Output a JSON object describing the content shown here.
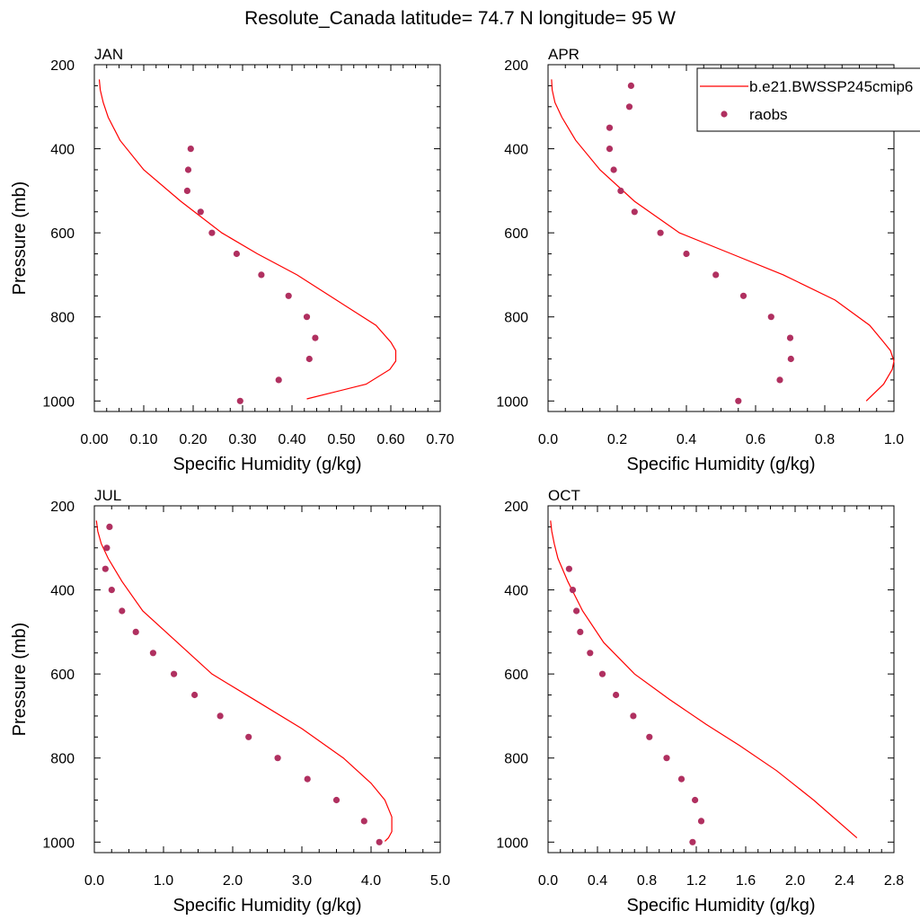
{
  "title": "Resolute_Canada  latitude= 74.7 N longitude= 95 W",
  "colors": {
    "model": "#ff0000",
    "obs": "#b03060",
    "axis": "#000000"
  },
  "legend": {
    "entries": [
      {
        "label": "b.e21.BWSSP245cmip6",
        "kind": "line"
      },
      {
        "label": "raobs",
        "kind": "marker"
      }
    ]
  },
  "chart_data": [
    {
      "type": "line",
      "panel_label": "JAN",
      "xlabel": "Specific Humidity (g/kg)",
      "ylabel": "Pressure (mb)",
      "xlim": [
        0,
        0.7
      ],
      "ylim": [
        200,
        1025
      ],
      "y_reversed": true,
      "xticks": [
        0,
        0.1,
        0.2,
        0.3,
        0.4,
        0.5,
        0.6,
        0.7
      ],
      "xtick_labels": [
        "0.00",
        "0.10",
        "0.20",
        "0.30",
        "0.40",
        "0.50",
        "0.60",
        "0.70"
      ],
      "yticks": [
        200,
        400,
        600,
        800,
        1000
      ],
      "ytick_labels": [
        "200",
        "400",
        "600",
        "800",
        "1000"
      ],
      "series": [
        {
          "name": "b.e21.BWSSP245cmip6",
          "kind": "line",
          "x": [
            0.01,
            0.012,
            0.018,
            0.028,
            0.052,
            0.1,
            0.175,
            0.258,
            0.33,
            0.41,
            0.49,
            0.57,
            0.6,
            0.61,
            0.61,
            0.598,
            0.55,
            0.43
          ],
          "y": [
            235,
            260,
            290,
            325,
            380,
            450,
            525,
            600,
            650,
            700,
            760,
            820,
            860,
            880,
            905,
            925,
            960,
            995
          ]
        },
        {
          "name": "raobs",
          "kind": "marker",
          "x": [
            0.195,
            0.19,
            0.188,
            0.215,
            0.238,
            0.288,
            0.338,
            0.393,
            0.43,
            0.447,
            0.435,
            0.373,
            0.295
          ],
          "y": [
            400,
            450,
            500,
            550,
            600,
            650,
            700,
            750,
            800,
            850,
            900,
            950,
            1000
          ]
        }
      ]
    },
    {
      "type": "line",
      "panel_label": "APR",
      "xlabel": "Specific Humidity (g/kg)",
      "ylabel": "",
      "xlim": [
        0,
        1.0
      ],
      "ylim": [
        200,
        1025
      ],
      "y_reversed": true,
      "xticks": [
        0,
        0.2,
        0.4,
        0.6,
        0.8,
        1.0
      ],
      "xtick_labels": [
        "0.0",
        "0.2",
        "0.4",
        "0.6",
        "0.8",
        "1.0"
      ],
      "yticks": [
        200,
        400,
        600,
        800,
        1000
      ],
      "ytick_labels": [
        "200",
        "400",
        "600",
        "800",
        "1000"
      ],
      "series": [
        {
          "name": "b.e21.BWSSP245cmip6",
          "kind": "line",
          "x": [
            0.01,
            0.012,
            0.02,
            0.04,
            0.08,
            0.15,
            0.25,
            0.38,
            0.53,
            0.68,
            0.83,
            0.93,
            0.97,
            0.99,
            1.0,
            0.995,
            0.97,
            0.92
          ],
          "y": [
            235,
            260,
            290,
            325,
            380,
            450,
            525,
            600,
            650,
            700,
            760,
            820,
            860,
            880,
            905,
            925,
            960,
            1000
          ]
        },
        {
          "name": "raobs",
          "kind": "marker",
          "x": [
            0.24,
            0.235,
            0.178,
            0.178,
            0.19,
            0.21,
            0.25,
            0.325,
            0.4,
            0.485,
            0.565,
            0.645,
            0.7,
            0.702,
            0.67,
            0.55
          ],
          "y": [
            250,
            300,
            350,
            400,
            450,
            500,
            550,
            600,
            650,
            700,
            750,
            800,
            850,
            900,
            950,
            1000
          ]
        }
      ]
    },
    {
      "type": "line",
      "panel_label": "JUL",
      "xlabel": "Specific Humidity (g/kg)",
      "ylabel": "Pressure (mb)",
      "xlim": [
        0,
        5.0
      ],
      "ylim": [
        200,
        1025
      ],
      "y_reversed": true,
      "xticks": [
        0,
        1,
        2,
        3,
        4,
        5
      ],
      "xtick_labels": [
        "0.0",
        "1.0",
        "2.0",
        "3.0",
        "4.0",
        "5.0"
      ],
      "yticks": [
        200,
        400,
        600,
        800,
        1000
      ],
      "ytick_labels": [
        "200",
        "400",
        "600",
        "800",
        "1000"
      ],
      "series": [
        {
          "name": "b.e21.BWSSP245cmip6",
          "kind": "line",
          "x": [
            0.03,
            0.05,
            0.1,
            0.2,
            0.4,
            0.7,
            1.2,
            1.7,
            2.3,
            3.0,
            3.6,
            4.0,
            4.2,
            4.3,
            4.3,
            4.25,
            4.2
          ],
          "y": [
            235,
            260,
            290,
            325,
            380,
            450,
            525,
            600,
            660,
            730,
            800,
            860,
            900,
            940,
            975,
            990,
            998
          ]
        },
        {
          "name": "raobs",
          "kind": "marker",
          "x": [
            0.22,
            0.18,
            0.16,
            0.25,
            0.4,
            0.6,
            0.85,
            1.15,
            1.45,
            1.82,
            2.23,
            2.65,
            3.08,
            3.5,
            3.9,
            4.12
          ],
          "y": [
            250,
            300,
            350,
            400,
            450,
            500,
            550,
            600,
            650,
            700,
            750,
            800,
            850,
            900,
            950,
            1000
          ]
        }
      ]
    },
    {
      "type": "line",
      "panel_label": "OCT",
      "xlabel": "Specific Humidity (g/kg)",
      "ylabel": "",
      "xlim": [
        0,
        2.8
      ],
      "ylim": [
        200,
        1025
      ],
      "y_reversed": true,
      "xticks": [
        0,
        0.4,
        0.8,
        1.2,
        1.6,
        2.0,
        2.4,
        2.8
      ],
      "xtick_labels": [
        "0.0",
        "0.4",
        "0.8",
        "1.2",
        "1.6",
        "2.0",
        "2.4",
        "2.8"
      ],
      "yticks": [
        200,
        400,
        600,
        800,
        1000
      ],
      "ytick_labels": [
        "200",
        "400",
        "600",
        "800",
        "1000"
      ],
      "series": [
        {
          "name": "b.e21.BWSSP245cmip6",
          "kind": "line",
          "x": [
            0.02,
            0.03,
            0.05,
            0.08,
            0.16,
            0.28,
            0.45,
            0.7,
            0.98,
            1.28,
            1.55,
            1.85,
            2.15,
            2.5
          ],
          "y": [
            235,
            260,
            290,
            325,
            380,
            450,
            525,
            600,
            660,
            720,
            770,
            830,
            900,
            990
          ]
        },
        {
          "name": "raobs",
          "kind": "marker",
          "x": [
            0.17,
            0.2,
            0.23,
            0.26,
            0.34,
            0.44,
            0.55,
            0.69,
            0.82,
            0.96,
            1.08,
            1.19,
            1.24,
            1.17
          ],
          "y": [
            350,
            400,
            450,
            500,
            550,
            600,
            650,
            700,
            750,
            800,
            850,
            900,
            950,
            1000
          ]
        }
      ]
    }
  ]
}
